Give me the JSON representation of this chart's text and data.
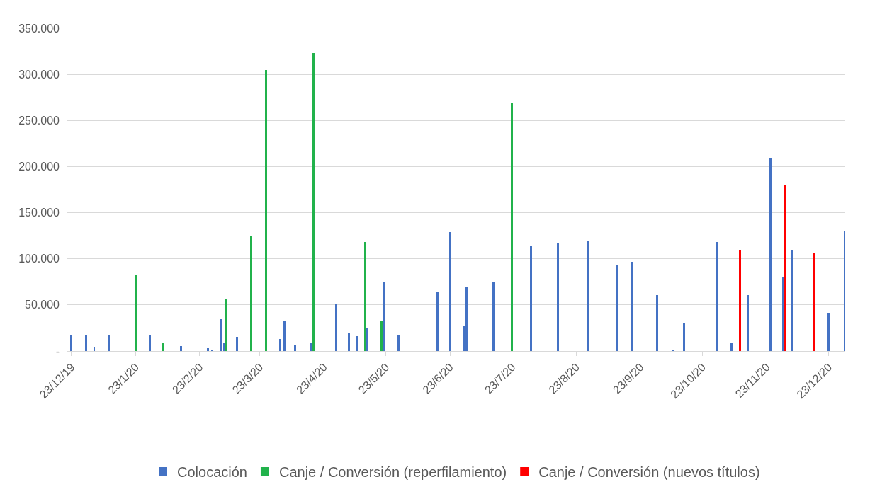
{
  "chart_data": {
    "type": "bar",
    "xlim": [
      "2019-12-21",
      "2020-12-31"
    ],
    "xticks": [
      {
        "value": "2019-12-23",
        "label": "23/12/19"
      },
      {
        "value": "2020-01-23",
        "label": "23/1/20"
      },
      {
        "value": "2020-02-23",
        "label": "23/2/20"
      },
      {
        "value": "2020-03-23",
        "label": "23/3/20"
      },
      {
        "value": "2020-04-23",
        "label": "23/4/20"
      },
      {
        "value": "2020-05-23",
        "label": "23/5/20"
      },
      {
        "value": "2020-06-23",
        "label": "23/6/20"
      },
      {
        "value": "2020-07-23",
        "label": "23/7/20"
      },
      {
        "value": "2020-08-23",
        "label": "23/8/20"
      },
      {
        "value": "2020-09-23",
        "label": "23/9/20"
      },
      {
        "value": "2020-10-23",
        "label": "23/10/20"
      },
      {
        "value": "2020-11-23",
        "label": "23/11/20"
      },
      {
        "value": "2020-12-23",
        "label": "23/12/20"
      }
    ],
    "ylim": [
      0,
      350000
    ],
    "yticks": [
      {
        "value": 0,
        "label": "-"
      },
      {
        "value": 50000,
        "label": "50.000"
      },
      {
        "value": 100000,
        "label": "100.000"
      },
      {
        "value": 150000,
        "label": "150.000"
      },
      {
        "value": 200000,
        "label": "200.000"
      },
      {
        "value": 250000,
        "label": "250.000"
      },
      {
        "value": 300000,
        "label": "300.000"
      },
      {
        "value": 350000,
        "label": "350.000"
      }
    ],
    "grid": "y",
    "legend": "bottom",
    "series": [
      {
        "name": "Colocación",
        "color": "#4472c4",
        "x": [
          "2019-12-23",
          "2019-12-30",
          "2020-01-03",
          "2020-01-10",
          "2020-01-30",
          "2020-02-14",
          "2020-02-27",
          "2020-02-29",
          "2020-03-04",
          "2020-03-06",
          "2020-03-12",
          "2020-04-02",
          "2020-04-04",
          "2020-04-09",
          "2020-04-17",
          "2020-04-29",
          "2020-05-05",
          "2020-05-09",
          "2020-05-14",
          "2020-05-22",
          "2020-05-29",
          "2020-06-17",
          "2020-06-23",
          "2020-06-30",
          "2020-07-01",
          "2020-07-14",
          "2020-08-01",
          "2020-08-14",
          "2020-08-29",
          "2020-09-12",
          "2020-09-19",
          "2020-10-01",
          "2020-10-09",
          "2020-10-14",
          "2020-10-30",
          "2020-11-06",
          "2020-11-14",
          "2020-11-25",
          "2020-12-01",
          "2020-12-05",
          "2020-12-23",
          "2020-12-31"
        ],
        "values": [
          18000,
          17500,
          3500,
          18000,
          18000,
          5500,
          3000,
          1500,
          34500,
          8500,
          15500,
          13000,
          32500,
          6500,
          8500,
          51000,
          19500,
          16000,
          24500,
          74500,
          17500,
          64000,
          129000,
          27500,
          69000,
          75000,
          114000,
          117000,
          120000,
          93500,
          96500,
          61000,
          1000,
          30000,
          118500,
          9000,
          60500,
          209500,
          80500,
          110000,
          41500,
          130000
        ]
      },
      {
        "name": "Canje / Conversión (reperfilamiento)",
        "color": "#21b24b",
        "x": [
          "2020-01-23",
          "2020-02-05",
          "2020-03-07",
          "2020-03-19",
          "2020-03-26",
          "2020-04-18",
          "2020-05-13",
          "2020-05-21",
          "2020-07-23"
        ],
        "values": [
          83000,
          8500,
          56500,
          125000,
          305000,
          323500,
          118000,
          32000,
          269000
        ]
      },
      {
        "name": "Canje / Conversión (nuevos títulos)",
        "color": "#ff0000",
        "x": [
          "2020-11-10",
          "2020-12-02",
          "2020-12-16"
        ],
        "values": [
          110000,
          179500,
          106000
        ]
      }
    ]
  }
}
